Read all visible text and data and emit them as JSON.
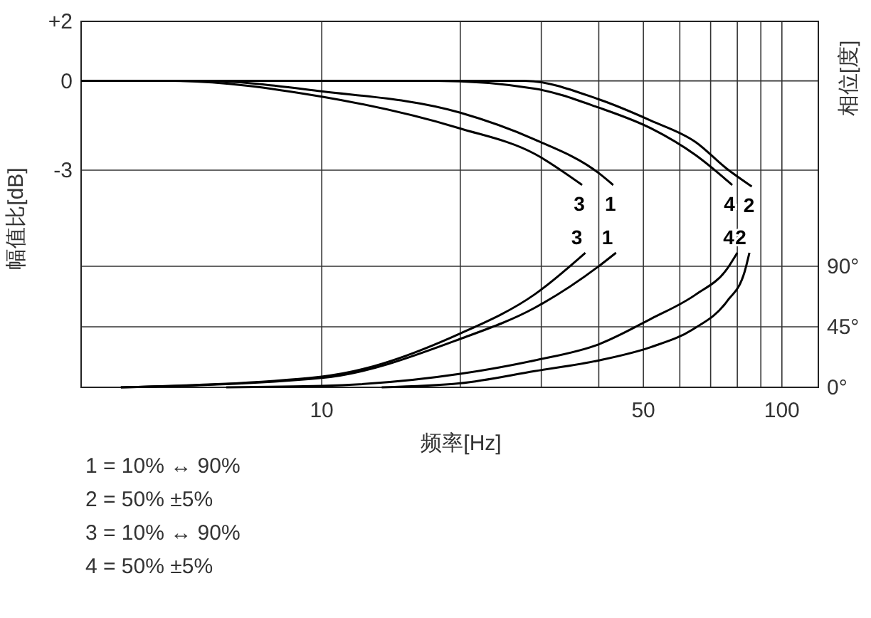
{
  "chart_data": {
    "type": "line",
    "xlabel": "频率[Hz]",
    "ylabel": "幅值比[dB]",
    "y2label": "相位[度]",
    "log": "x",
    "grid": true,
    "marker": "none",
    "line_style": "solid",
    "xlim": [
      3,
      120
    ],
    "xticks": [
      {
        "value": 10,
        "label": "10"
      },
      {
        "value": 20,
        "label": null
      },
      {
        "value": 30,
        "label": null
      },
      {
        "value": 40,
        "label": null
      },
      {
        "value": 50,
        "label": "50"
      },
      {
        "value": 60,
        "label": null
      },
      {
        "value": 70,
        "label": null
      },
      {
        "value": 80,
        "label": null
      },
      {
        "value": 90,
        "label": null
      },
      {
        "value": 100,
        "label": "100"
      }
    ],
    "ylim": [
      -10.3,
      2
    ],
    "yticks": [
      {
        "value": 2,
        "label": "+2"
      },
      0,
      -3
    ],
    "y2lim": [
      0,
      272
    ],
    "y2ticks": [
      {
        "value": 0,
        "label": "0°"
      },
      {
        "value": 45,
        "label": "45°"
      },
      {
        "value": 90,
        "label": "90°"
      }
    ],
    "series": [
      {
        "name": "3",
        "color": "#000000",
        "x": [
          3,
          4.7,
          10,
          20,
          29,
          36.8
        ],
        "values": [
          0,
          0,
          -0.53,
          -1.6,
          -2.45,
          -3.5
        ]
      },
      {
        "name": "1",
        "color": "#000000",
        "x": [
          3,
          5.5,
          10,
          20,
          29,
          40,
          43
        ],
        "values": [
          0,
          0,
          -0.35,
          -1.07,
          -1.97,
          -3.1,
          -3.5
        ]
      },
      {
        "name": "4",
        "color": "#000000",
        "x": [
          3,
          17.7,
          29,
          40,
          52,
          65,
          78
        ],
        "values": [
          0,
          0,
          -0.26,
          -0.9,
          -1.6,
          -2.5,
          -3.5
        ]
      },
      {
        "name": "2",
        "color": "#000000",
        "x": [
          3,
          27.6,
          40,
          52,
          65,
          76,
          86
        ],
        "values": [
          0,
          0,
          -0.62,
          -1.34,
          -2.06,
          -2.96,
          -3.55
        ]
      },
      {
        "name": "3",
        "color": "#000000",
        "axis": "y2",
        "x": [
          3.66,
          10,
          20,
          29,
          37.4
        ],
        "values": [
          0,
          8,
          40,
          69,
          100
        ]
      },
      {
        "name": "1",
        "color": "#000000",
        "axis": "y2",
        "x": [
          3.66,
          10,
          20,
          29,
          40,
          43.6
        ],
        "values": [
          0,
          7,
          36,
          59,
          90,
          100
        ]
      },
      {
        "name": "4",
        "color": "#000000",
        "axis": "y2",
        "x": [
          6.2,
          10,
          20,
          29,
          40,
          52,
          65,
          76,
          80
        ],
        "values": [
          0,
          1,
          10,
          20,
          32,
          51,
          69,
          88,
          100
        ]
      },
      {
        "name": "2",
        "color": "#000000",
        "axis": "y2",
        "x": [
          13.5,
          20,
          29,
          40,
          52,
          64,
          76,
          83,
          85
        ],
        "values": [
          0,
          3,
          12,
          20,
          30,
          43,
          64,
          86,
          100
        ]
      }
    ],
    "annotations": [
      "1 = 10% ↔ 90%",
      "2 = 50%  ±5%",
      "3 = 10% ↔ 90%",
      "4 = 50%  ±5%"
    ]
  }
}
